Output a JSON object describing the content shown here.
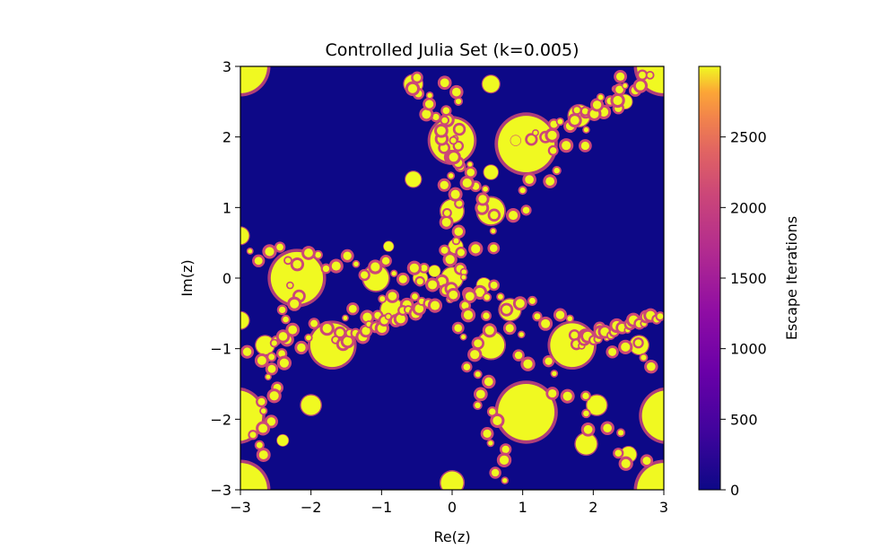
{
  "chart_data": {
    "type": "heatmap",
    "title": "Controlled Julia Set (k=0.005)",
    "xlabel": "Re(z)",
    "ylabel": "Im(z)",
    "xlim": [
      -3,
      3
    ],
    "ylim": [
      -3,
      3
    ],
    "x_ticks": [
      -3,
      -2,
      -1,
      0,
      1,
      2,
      3
    ],
    "y_ticks": [
      -3,
      -2,
      -1,
      0,
      1,
      2,
      3
    ],
    "x_tick_labels": [
      "−3",
      "−2",
      "−1",
      "0",
      "1",
      "2",
      "3"
    ],
    "y_tick_labels": [
      "−3",
      "−2",
      "−1",
      "0",
      "1",
      "2",
      "3"
    ],
    "colormap": "plasma",
    "colorbar": {
      "label": "Escape Iterations",
      "range": [
        0,
        3000
      ],
      "ticks": [
        0,
        500,
        1000,
        1500,
        2000,
        2500
      ],
      "tick_labels": [
        "0",
        "500",
        "1000",
        "1500",
        "2000",
        "2500"
      ]
    },
    "colors": {
      "escaped_fast": "#0d0887",
      "bounded": "#f0f921",
      "boundary_mid": "#cc4778"
    },
    "grid": false
  }
}
